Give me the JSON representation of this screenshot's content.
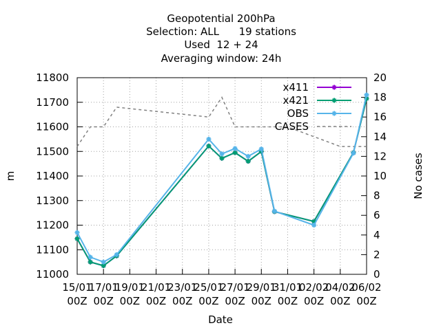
{
  "chart_data": {
    "type": "line",
    "title_lines": [
      "Geopotential 200hPa",
      "Selection: ALL      19 stations",
      "Used  12 + 24",
      "Averaging window: 24h"
    ],
    "xlabel": "Date",
    "ylabel": "m",
    "y2label": "No cases",
    "ylim": [
      11000,
      11800
    ],
    "y2lim": [
      0,
      20
    ],
    "y_ticks": [
      11000,
      11100,
      11200,
      11300,
      11400,
      11500,
      11600,
      11700,
      11800
    ],
    "y2_ticks": [
      0,
      2,
      4,
      6,
      8,
      10,
      12,
      14,
      16,
      18,
      20
    ],
    "x_tick_labels": [
      [
        "15/01",
        "00Z"
      ],
      [
        "17/01",
        "00Z"
      ],
      [
        "19/01",
        "00Z"
      ],
      [
        "21/01",
        "00Z"
      ],
      [
        "23/01",
        "00Z"
      ],
      [
        "25/01",
        "00Z"
      ],
      [
        "27/01",
        "00Z"
      ],
      [
        "29/01",
        "00Z"
      ],
      [
        "31/01",
        "00Z"
      ],
      [
        "02/02",
        "00Z"
      ],
      [
        "04/02",
        "00Z"
      ],
      [
        "06/02",
        "00Z"
      ]
    ],
    "x_domain_days": [
      0,
      22
    ],
    "grid": true,
    "legend_position": "top-right",
    "series": [
      {
        "name": "x411",
        "color": "#9400d3",
        "axis": "y1",
        "style": "line-points",
        "days": [
          0,
          1,
          2,
          3,
          10,
          11,
          12,
          13,
          14,
          15,
          18,
          21,
          22
        ],
        "values": [
          11145,
          11050,
          11035,
          11075,
          11522,
          11472,
          11495,
          11460,
          11500,
          11255,
          11215,
          11495,
          11715
        ]
      },
      {
        "name": "x421",
        "color": "#009e73",
        "axis": "y1",
        "style": "line-points",
        "days": [
          0,
          1,
          2,
          3,
          10,
          11,
          12,
          13,
          14,
          15,
          18,
          21,
          22
        ],
        "values": [
          11145,
          11050,
          11035,
          11075,
          11522,
          11472,
          11495,
          11460,
          11500,
          11255,
          11215,
          11495,
          11715
        ]
      },
      {
        "name": "OBS",
        "color": "#56b4e9",
        "axis": "y1",
        "style": "line-points",
        "days": [
          0,
          1,
          2,
          3,
          10,
          11,
          12,
          13,
          14,
          15,
          18,
          21,
          22
        ],
        "values": [
          11170,
          11070,
          11050,
          11080,
          11550,
          11490,
          11512,
          11480,
          11510,
          11257,
          11200,
          11493,
          11730
        ]
      },
      {
        "name": "CASES",
        "color": "#808080",
        "axis": "y2",
        "style": "dashed",
        "days": [
          0,
          1,
          2,
          3,
          10,
          11,
          12,
          13,
          14,
          15,
          16,
          17,
          18,
          19,
          20,
          21,
          22
        ],
        "values": [
          13,
          15,
          15,
          17,
          16,
          18,
          15,
          15,
          15,
          15,
          15,
          14.5,
          14,
          13.5,
          13,
          13,
          13
        ]
      }
    ]
  }
}
